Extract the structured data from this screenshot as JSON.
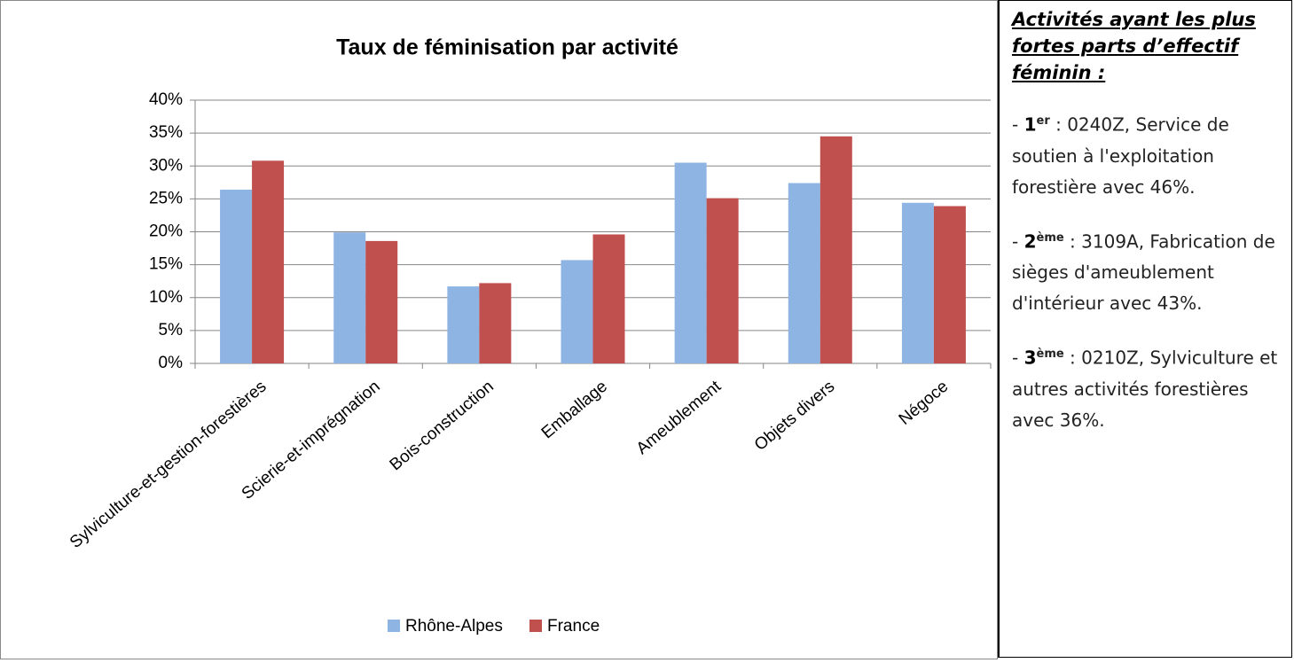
{
  "chart_data": {
    "type": "bar",
    "title": "Taux de féminisation par activité",
    "categories": [
      "Sylviculture-et-gestion-forestières",
      "Scierie-et-imprégnation",
      "Bois-construction",
      "Emballage",
      "Ameublement",
      "Objets divers",
      "Négoce"
    ],
    "series": [
      {
        "name": "Rhône-Alpes",
        "color": "#8eb4e3",
        "values": [
          26.4,
          19.9,
          11.7,
          15.7,
          30.5,
          27.4,
          24.4
        ]
      },
      {
        "name": "France",
        "color": "#c0504d",
        "values": [
          30.8,
          18.6,
          12.2,
          19.6,
          25.1,
          34.5,
          23.9
        ]
      }
    ],
    "ylim": [
      0,
      40
    ],
    "yticks": [
      {
        "value": 0,
        "label": "0%"
      },
      {
        "value": 5,
        "label": "5%"
      },
      {
        "value": 10,
        "label": "10%"
      },
      {
        "value": 15,
        "label": "15%"
      },
      {
        "value": 20,
        "label": "20%"
      },
      {
        "value": 25,
        "label": "25%"
      },
      {
        "value": 30,
        "label": "30%"
      },
      {
        "value": 35,
        "label": "35%"
      },
      {
        "value": 40,
        "label": "40%"
      }
    ],
    "grid": true,
    "legend": "bottom"
  },
  "panel": {
    "heading": "Activités ayant les plus fortes parts d’effectif féminin :",
    "items": [
      {
        "prefix": "- ",
        "rank": "1",
        "suffix": "er",
        "text": " : 0240Z, Service de soutien à l'exploitation forestière avec  46%."
      },
      {
        "prefix": "- ",
        "rank": "2",
        "suffix": "ème",
        "text": " : 3109A, Fabrication de sièges d'ameublement d'intérieur avec 43%."
      },
      {
        "prefix": "- ",
        "rank": "3",
        "suffix": "ème",
        "text": " : 0210Z, Sylviculture et autres activités forestières avec  36%."
      }
    ]
  }
}
